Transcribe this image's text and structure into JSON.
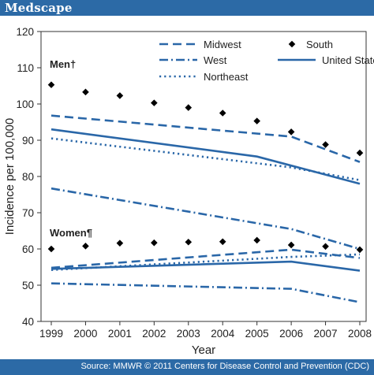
{
  "header": {
    "logo_text": "Medscape"
  },
  "footer": {
    "source_text": "Source: MMWR © 2011 Centers for Disease Control and Prevention (CDC)"
  },
  "colors": {
    "brand_bar": "#2c6aa6",
    "series": "#2a67a8",
    "text": "#222222"
  },
  "chart_data": {
    "type": "line",
    "xlabel": "Year",
    "ylabel": "Incidence per 100,000",
    "x": [
      1999,
      2000,
      2001,
      2002,
      2003,
      2004,
      2005,
      2006,
      2007,
      2008
    ],
    "ylim": [
      40,
      120
    ],
    "yticks": [
      40,
      50,
      60,
      70,
      80,
      90,
      100,
      110,
      120
    ],
    "grid": false,
    "legend": "top",
    "group_labels": {
      "men": "Men†",
      "women": "Women¶"
    },
    "legend_entries": [
      {
        "label": "Midwest",
        "style": "dashed"
      },
      {
        "label": "South",
        "style": "diamond"
      },
      {
        "label": "West",
        "style": "dashdot"
      },
      {
        "label": "United States",
        "style": "solid"
      },
      {
        "label": "Northeast",
        "style": "dotted"
      }
    ],
    "series": [
      {
        "name": "Midwest",
        "group": "men",
        "style": "dashed",
        "points": [
          [
            1999,
            96.8
          ],
          [
            2006,
            91.0
          ],
          [
            2008,
            84.0
          ]
        ]
      },
      {
        "name": "United States",
        "group": "men",
        "style": "solid",
        "points": [
          [
            1999,
            93.0
          ],
          [
            2005,
            85.5
          ],
          [
            2008,
            78.0
          ]
        ]
      },
      {
        "name": "Northeast",
        "group": "men",
        "style": "dotted",
        "points": [
          [
            1999,
            90.5
          ],
          [
            2006,
            82.5
          ],
          [
            2008,
            79.0
          ]
        ]
      },
      {
        "name": "West",
        "group": "men",
        "style": "dashdot",
        "points": [
          [
            1999,
            76.7
          ],
          [
            2006,
            65.5
          ],
          [
            2008,
            60.0
          ]
        ]
      },
      {
        "name": "South",
        "group": "men",
        "style": "diamond",
        "points": [
          [
            1999,
            105.3
          ],
          [
            2000,
            103.3
          ],
          [
            2001,
            102.3
          ],
          [
            2002,
            100.3
          ],
          [
            2003,
            99.0
          ],
          [
            2004,
            97.5
          ],
          [
            2005,
            95.3
          ],
          [
            2006,
            92.3
          ],
          [
            2007,
            88.8
          ],
          [
            2008,
            86.5
          ]
        ]
      },
      {
        "name": "Midwest",
        "group": "women",
        "style": "dashed",
        "points": [
          [
            1999,
            54.8
          ],
          [
            2006,
            59.8
          ],
          [
            2008,
            57.5
          ]
        ]
      },
      {
        "name": "Northeast",
        "group": "women",
        "style": "dotted",
        "points": [
          [
            1999,
            54.2
          ],
          [
            2006,
            57.8
          ],
          [
            2008,
            58.5
          ]
        ]
      },
      {
        "name": "United States",
        "group": "women",
        "style": "solid",
        "points": [
          [
            1999,
            54.5
          ],
          [
            2006,
            56.5
          ],
          [
            2008,
            54.0
          ]
        ]
      },
      {
        "name": "West",
        "group": "women",
        "style": "dashdot",
        "points": [
          [
            1999,
            50.5
          ],
          [
            2006,
            49.0
          ],
          [
            2008,
            45.3
          ]
        ]
      },
      {
        "name": "South",
        "group": "women",
        "style": "diamond",
        "points": [
          [
            1999,
            60.0
          ],
          [
            2000,
            60.8
          ],
          [
            2001,
            61.6
          ],
          [
            2002,
            61.7
          ],
          [
            2003,
            61.9
          ],
          [
            2004,
            62.0
          ],
          [
            2005,
            62.4
          ],
          [
            2006,
            61.1
          ],
          [
            2007,
            60.7
          ],
          [
            2008,
            59.8
          ]
        ]
      }
    ]
  }
}
